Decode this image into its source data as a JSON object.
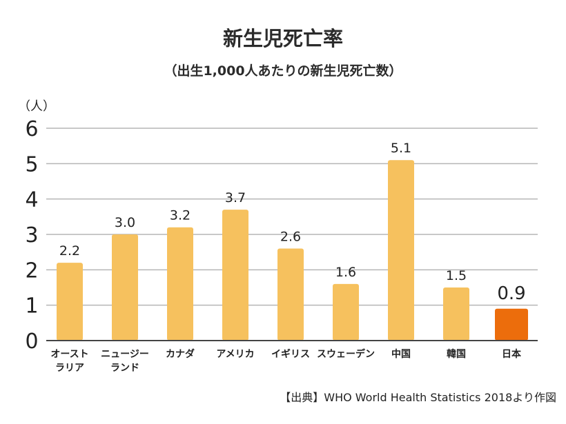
{
  "chart_data": {
    "type": "bar",
    "title": "新生児死亡率",
    "subtitle": "（出生1,000人あたりの新生児死亡数）",
    "unit_label": "（人）",
    "source": "【出典】WHO World Health Statistics 2018より作図",
    "categories": [
      "オーストラリア",
      "ニュージーランド",
      "カナダ",
      "アメリカ",
      "イギリス",
      "スウェーデン",
      "中国",
      "韓国",
      "日本"
    ],
    "category_lines": [
      [
        "オースト",
        "ラリア"
      ],
      [
        "ニュージー",
        "ランド"
      ],
      [
        "カナダ"
      ],
      [
        "アメリカ"
      ],
      [
        "イギリス"
      ],
      [
        "スウェーデン"
      ],
      [
        "中国"
      ],
      [
        "韓国"
      ],
      [
        "日本"
      ]
    ],
    "values": [
      2.2,
      3.0,
      3.2,
      3.7,
      2.6,
      1.6,
      5.1,
      1.5,
      0.9
    ],
    "value_labels": [
      "2.2",
      "3.0",
      "3.2",
      "3.7",
      "2.6",
      "1.6",
      "5.1",
      "1.5",
      "0.9"
    ],
    "ylim": [
      0,
      6
    ],
    "yticks": [
      0,
      1,
      2,
      3,
      4,
      5,
      6
    ],
    "grid": true,
    "bar_color": "#f6c15e",
    "highlight_color": "#ec6d0c",
    "highlight_category": "日本"
  }
}
